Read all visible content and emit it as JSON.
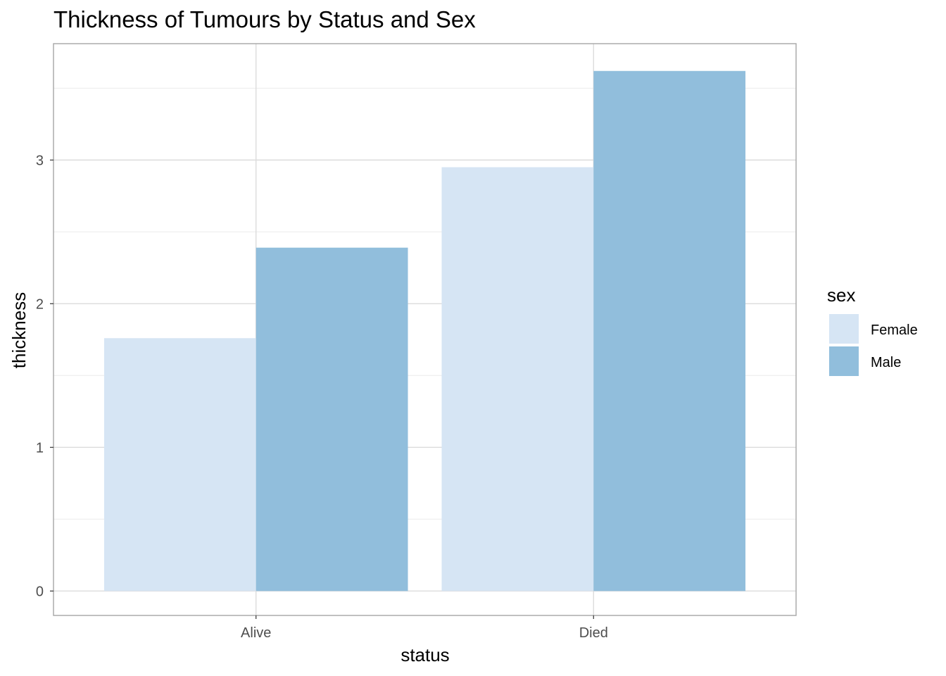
{
  "chart_data": {
    "type": "bar",
    "title": "Thickness of Tumours by Status and Sex",
    "xlabel": "status",
    "ylabel": "thickness",
    "categories": [
      "Alive",
      "Died"
    ],
    "series": [
      {
        "name": "Female",
        "color": "#d6e5f4",
        "values": [
          1.76,
          2.95
        ]
      },
      {
        "name": "Male",
        "color": "#91bedc",
        "values": [
          2.39,
          3.62
        ]
      }
    ],
    "ylim": [
      -0.17,
      3.81
    ],
    "yticks": [
      0,
      1,
      2,
      3
    ],
    "yticklabels": [
      "0",
      "1",
      "2",
      "3"
    ],
    "grid": true,
    "legend": {
      "title": "sex",
      "position": "right"
    }
  }
}
